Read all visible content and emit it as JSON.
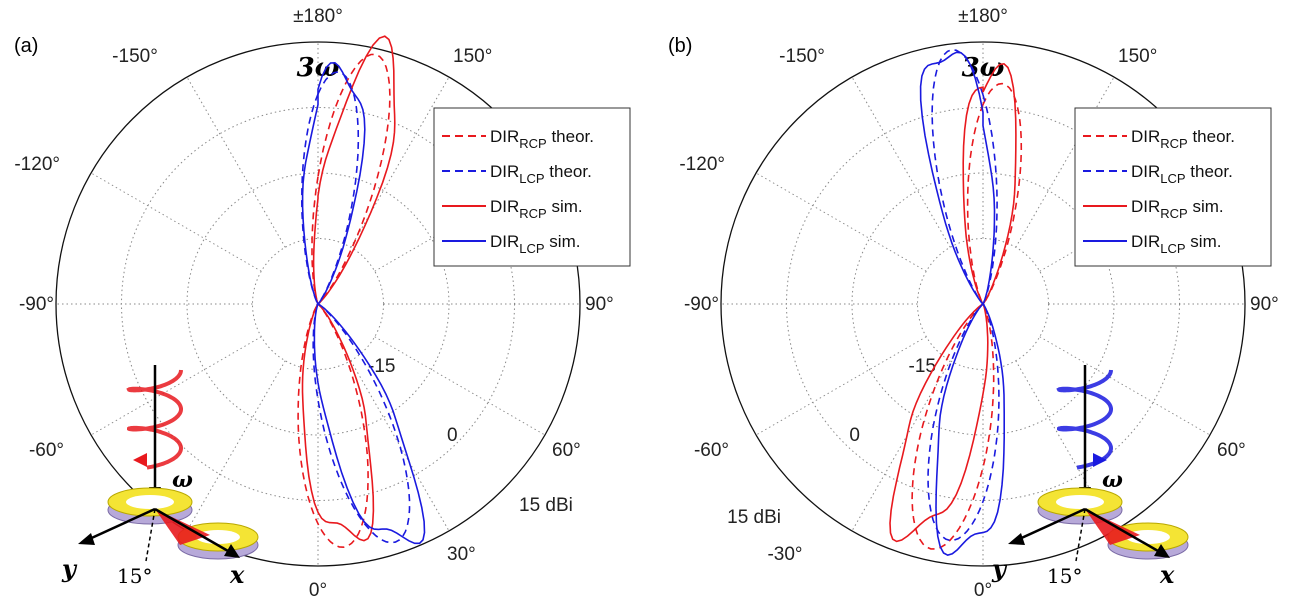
{
  "chart_data": [
    {
      "type": "polar",
      "panel_label": "(a)",
      "frequency_label": "3ω",
      "angle_labels": [
        "±180°",
        "150°",
        "-150°",
        "-120°",
        "-90°",
        "90°",
        "-60°",
        "60°",
        "30°",
        "0°"
      ],
      "radial_tick_labels": [
        "-15",
        "0",
        "15 dBi"
      ],
      "radial_range_dBi": [
        -30,
        15
      ],
      "legend": {
        "placement": "top-right",
        "entries": [
          {
            "main": "DIR",
            "sub": "RCP",
            "suffix": " theor.",
            "color": "#e8191e",
            "dash": true
          },
          {
            "main": "DIR",
            "sub": "LCP",
            "suffix": " theor.",
            "color": "#1a1adf",
            "dash": true
          },
          {
            "main": "DIR",
            "sub": "RCP",
            "suffix": " sim.",
            "color": "#e8191e",
            "dash": false
          },
          {
            "main": "DIR",
            "sub": "LCP",
            "suffix": " sim.",
            "color": "#1a1adf",
            "dash": false
          }
        ]
      },
      "series": [
        {
          "name": "DIR_RCP theor.",
          "lobes": [
            {
              "angle_deg": 167,
              "peak_dBi": 14
            },
            {
              "angle_deg": 6,
              "peak_dBi": 12
            }
          ]
        },
        {
          "name": "DIR_LCP theor.",
          "lobes": [
            {
              "angle_deg": 175,
              "peak_dBi": 10
            },
            {
              "angle_deg": 18,
              "peak_dBi": 13
            }
          ]
        },
        {
          "name": "DIR_RCP sim.",
          "lobes": [
            {
              "angle_deg": 165,
              "peak_dBi": 15
            },
            {
              "angle_deg": 8,
              "peak_dBi": 11
            }
          ]
        },
        {
          "name": "DIR_LCP sim.",
          "lobes": [
            {
              "angle_deg": 174,
              "peak_dBi": 11
            },
            {
              "angle_deg": 20,
              "peak_dBi": 14
            }
          ]
        }
      ],
      "inset": {
        "tilt_label": "15°",
        "axis_x": "x",
        "axis_y": "y",
        "omega": "ω",
        "wave_color": "#e8191e"
      }
    },
    {
      "type": "polar",
      "panel_label": "(b)",
      "frequency_label": "3ω",
      "angle_labels": [
        "±180°",
        "150°",
        "-150°",
        "-120°",
        "-90°",
        "90°",
        "-60°",
        "60°",
        "-30°",
        "0°"
      ],
      "radial_tick_labels": [
        "-15",
        "0",
        "15 dBi"
      ],
      "radial_range_dBi": [
        -30,
        15
      ],
      "legend": {
        "placement": "top-right",
        "entries": [
          {
            "main": "DIR",
            "sub": "RCP",
            "suffix": " theor.",
            "color": "#e8191e",
            "dash": true
          },
          {
            "main": "DIR",
            "sub": "LCP",
            "suffix": " theor.",
            "color": "#1a1adf",
            "dash": true
          },
          {
            "main": "DIR",
            "sub": "RCP",
            "suffix": " sim.",
            "color": "#e8191e",
            "dash": false
          },
          {
            "main": "DIR",
            "sub": "LCP",
            "suffix": " sim.",
            "color": "#1a1adf",
            "dash": false
          }
        ]
      },
      "series": [
        {
          "name": "DIR_RCP theor.",
          "lobes": [
            {
              "angle_deg": 175,
              "peak_dBi": 8
            },
            {
              "angle_deg": -12,
              "peak_dBi": 13
            }
          ]
        },
        {
          "name": "DIR_LCP theor.",
          "lobes": [
            {
              "angle_deg": -173,
              "peak_dBi": 14
            },
            {
              "angle_deg": -8,
              "peak_dBi": 11
            }
          ]
        },
        {
          "name": "DIR_RCP sim.",
          "lobes": [
            {
              "angle_deg": 177,
              "peak_dBi": 10
            },
            {
              "angle_deg": -18,
              "peak_dBi": 12
            }
          ]
        },
        {
          "name": "DIR_LCP sim.",
          "lobes": [
            {
              "angle_deg": -171,
              "peak_dBi": 15
            },
            {
              "angle_deg": -5,
              "peak_dBi": 13
            }
          ]
        }
      ],
      "inset": {
        "tilt_label": "15°",
        "axis_x": "x",
        "axis_y": "y",
        "omega": "ω",
        "wave_color": "#1a1adf"
      }
    }
  ]
}
